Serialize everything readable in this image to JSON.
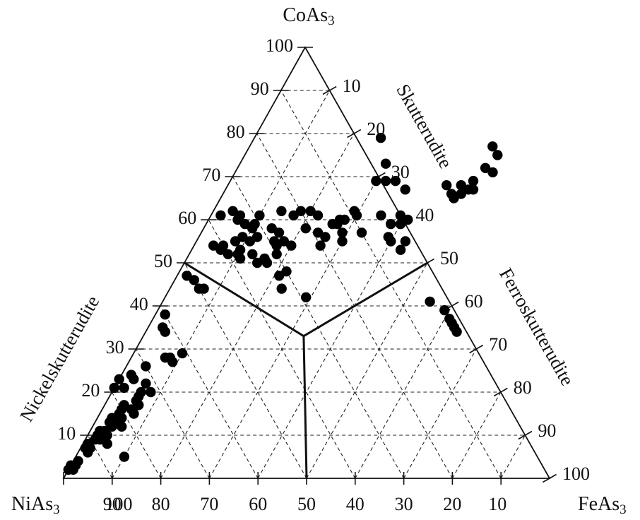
{
  "chart_data": {
    "type": "scatter",
    "subtype": "ternary",
    "vertices": {
      "top": {
        "main": "CoAs",
        "sub": "3"
      },
      "left": {
        "main": "NiAs",
        "sub": "3"
      },
      "right": {
        "main": "FeAs",
        "sub": "3"
      }
    },
    "left_ticks": [
      "10",
      "20",
      "30",
      "40",
      "50",
      "60",
      "70",
      "80",
      "90",
      "100"
    ],
    "right_ticks": [
      "10",
      "20",
      "30",
      "40",
      "50",
      "60",
      "70",
      "80",
      "90",
      "100"
    ],
    "bottom_ticks": [
      "100",
      "90",
      "80",
      "70",
      "60",
      "50",
      "40",
      "30",
      "20",
      "10"
    ],
    "fields": [
      {
        "name": "Skutterudite"
      },
      {
        "name": "Ferroskutterudite"
      },
      {
        "name": "Nickelskutterudite"
      }
    ],
    "field_boundary": {
      "junction": {
        "CoAs3": 33,
        "FeAs3": 33,
        "NiAs3": 34
      },
      "endpoints": [
        {
          "CoAs3": 50,
          "FeAs3": 0,
          "NiAs3": 50
        },
        {
          "CoAs3": 50,
          "FeAs3": 50,
          "NiAs3": 0
        },
        {
          "CoAs3": 0,
          "FeAs3": 50,
          "NiAs3": 50
        }
      ]
    },
    "grid": true,
    "grid_step": 10,
    "points": [
      [
        0.79,
        0.26
      ],
      [
        0.73,
        0.3
      ],
      [
        0.77,
        0.5
      ],
      [
        0.75,
        0.52
      ],
      [
        0.72,
        0.51
      ],
      [
        0.71,
        0.53
      ],
      [
        0.69,
        0.3
      ],
      [
        0.69,
        0.32
      ],
      [
        0.69,
        0.34
      ],
      [
        0.67,
        0.37
      ],
      [
        0.68,
        0.45
      ],
      [
        0.68,
        0.48
      ],
      [
        0.69,
        0.5
      ],
      [
        0.66,
        0.49
      ],
      [
        0.67,
        0.5
      ],
      [
        0.67,
        0.51
      ],
      [
        0.66,
        0.47
      ],
      [
        0.65,
        0.48
      ],
      [
        0.61,
        0.02
      ],
      [
        0.62,
        0.04
      ],
      [
        0.61,
        0.06
      ],
      [
        0.61,
        0.1
      ],
      [
        0.62,
        0.14
      ],
      [
        0.61,
        0.17
      ],
      [
        0.62,
        0.18
      ],
      [
        0.62,
        0.2
      ],
      [
        0.61,
        0.22
      ],
      [
        0.62,
        0.29
      ],
      [
        0.61,
        0.3
      ],
      [
        0.6,
        0.27
      ],
      [
        0.6,
        0.41
      ],
      [
        0.61,
        0.39
      ],
      [
        0.61,
        0.35
      ],
      [
        0.59,
        0.4
      ],
      [
        0.59,
        0.38
      ],
      [
        0.6,
        0.06
      ],
      [
        0.59,
        0.08
      ],
      [
        0.59,
        0.1
      ],
      [
        0.58,
        0.1
      ],
      [
        0.58,
        0.14
      ],
      [
        0.57,
        0.16
      ],
      [
        0.58,
        0.21
      ],
      [
        0.57,
        0.24
      ],
      [
        0.59,
        0.26
      ],
      [
        0.59,
        0.27
      ],
      [
        0.6,
        0.28
      ],
      [
        0.57,
        0.29
      ],
      [
        0.56,
        0.26
      ],
      [
        0.56,
        0.12
      ],
      [
        0.55,
        0.16
      ],
      [
        0.55,
        0.18
      ],
      [
        0.54,
        0.17
      ],
      [
        0.55,
        0.08
      ],
      [
        0.55,
        0.11
      ],
      [
        0.56,
        0.09
      ],
      [
        0.54,
        0.06
      ],
      [
        0.54,
        0.04
      ],
      [
        0.53,
        0.06
      ],
      [
        0.54,
        0.2
      ],
      [
        0.54,
        0.26
      ],
      [
        0.55,
        0.3
      ],
      [
        0.55,
        0.4
      ],
      [
        0.53,
        0.43
      ],
      [
        0.55,
        0.43
      ],
      [
        0.56,
        0.39
      ],
      [
        0.57,
        0.33
      ],
      [
        0.52,
        0.1
      ],
      [
        0.52,
        0.13
      ],
      [
        0.51,
        0.11
      ],
      [
        0.51,
        0.16
      ],
      [
        0.5,
        0.15
      ],
      [
        0.5,
        0.17
      ],
      [
        0.52,
        0.18
      ],
      [
        0.53,
        0.1
      ],
      [
        0.52,
        0.08
      ],
      [
        0.47,
        0.02
      ],
      [
        0.46,
        0.04
      ],
      [
        0.44,
        0.06
      ],
      [
        0.44,
        0.07
      ],
      [
        0.48,
        0.22
      ],
      [
        0.47,
        0.21
      ],
      [
        0.44,
        0.23
      ],
      [
        0.42,
        0.29
      ],
      [
        0.38,
        0.02
      ],
      [
        0.35,
        0.03
      ],
      [
        0.34,
        0.04
      ],
      [
        0.29,
        0.1
      ],
      [
        0.28,
        0.08
      ],
      [
        0.27,
        0.09
      ],
      [
        0.26,
        0.04
      ],
      [
        0.41,
        0.55
      ],
      [
        0.39,
        0.59
      ],
      [
        0.37,
        0.61
      ],
      [
        0.36,
        0.62
      ],
      [
        0.35,
        0.63
      ],
      [
        0.34,
        0.64
      ],
      [
        0.28,
        0.07
      ],
      [
        0.22,
        0.06
      ],
      [
        0.2,
        0.06
      ],
      [
        0.2,
        0.08
      ],
      [
        0.19,
        0.06
      ],
      [
        0.18,
        0.06
      ],
      [
        0.17,
        0.07
      ],
      [
        0.17,
        0.04
      ],
      [
        0.16,
        0.06
      ],
      [
        0.16,
        0.04
      ],
      [
        0.15,
        0.04
      ],
      [
        0.15,
        0.07
      ],
      [
        0.14,
        0.03
      ],
      [
        0.14,
        0.05
      ],
      [
        0.13,
        0.05
      ],
      [
        0.13,
        0.03
      ],
      [
        0.12,
        0.04
      ],
      [
        0.12,
        0.06
      ],
      [
        0.11,
        0.03
      ],
      [
        0.11,
        0.02
      ],
      [
        0.1,
        0.02
      ],
      [
        0.1,
        0.04
      ],
      [
        0.09,
        0.02
      ],
      [
        0.09,
        0.03
      ],
      [
        0.08,
        0.01
      ],
      [
        0.08,
        0.05
      ],
      [
        0.07,
        0.01
      ],
      [
        0.07,
        0.02
      ],
      [
        0.06,
        0.02
      ],
      [
        0.04,
        0.01
      ],
      [
        0.03,
        0.0
      ],
      [
        0.03,
        0.01
      ],
      [
        0.02,
        0.0
      ],
      [
        0.02,
        0.01
      ],
      [
        0.05,
        0.1
      ],
      [
        0.23,
        0.03
      ],
      [
        0.24,
        0.02
      ],
      [
        0.23,
        0.0
      ],
      [
        0.21,
        0.0
      ],
      [
        0.21,
        0.02
      ]
    ]
  }
}
